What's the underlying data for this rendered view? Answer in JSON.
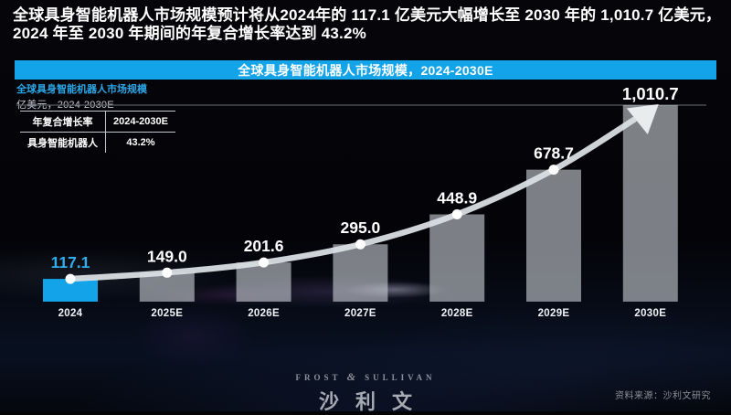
{
  "headline": {
    "line1": "全球具身智能机器人市场规模预计将从2024年的 117.1 亿美元大幅增长至 2030 年的 1,010.7 亿美元，",
    "line2": "2024 年至 2030 年期间的年复合增长率达到 43.2%"
  },
  "banner": {
    "title": "全球具身智能机器人市场规模，2024-2030E",
    "bg_color": "#12A3E8"
  },
  "chart_header": {
    "title": "全球具身智能机器人市场规模",
    "unit": "亿美元，2024-2030E"
  },
  "cagr_table": {
    "header": [
      "年复合增长率",
      "2024-2030E"
    ],
    "rows": [
      [
        "具身智能机器人",
        "43.2%"
      ]
    ]
  },
  "chart_data": {
    "type": "bar",
    "title": "全球具身智能机器人市场规模，2024-2030E",
    "xlabel": "",
    "ylabel": "亿美元",
    "categories": [
      "2024",
      "2025E",
      "2026E",
      "2027E",
      "2028E",
      "2029E",
      "2030E"
    ],
    "values": [
      117.1,
      149.0,
      201.6,
      295.0,
      448.9,
      678.7,
      1010.7
    ],
    "value_labels": [
      "117.1",
      "149.0",
      "201.6",
      "295.0",
      "448.9",
      "678.7",
      "1,010.7"
    ],
    "ylim": [
      0,
      1010.7
    ],
    "grid": "single-topline-at-max",
    "legend": "none",
    "highlight_index": 0,
    "trend": "smooth-line-through-bar-tops-ending-in-arrow",
    "accent_color": "#12A3E8",
    "accent_label_color": "#32ACEC",
    "bar_color": "rgba(205,210,217,0.60)",
    "line_color": "#D9DEE3",
    "dot_color": "#FFFFFF",
    "gridline_color": "#565C63",
    "value_label_color": "#FFFFFF",
    "axis_label_color": "#F0F3F6"
  },
  "logo": {
    "brand_left": "FROST",
    "brand_amp": "&",
    "brand_right": "SULLIVAN",
    "brand_name": "沙利文"
  },
  "source": "资料来源：沙利文研究"
}
